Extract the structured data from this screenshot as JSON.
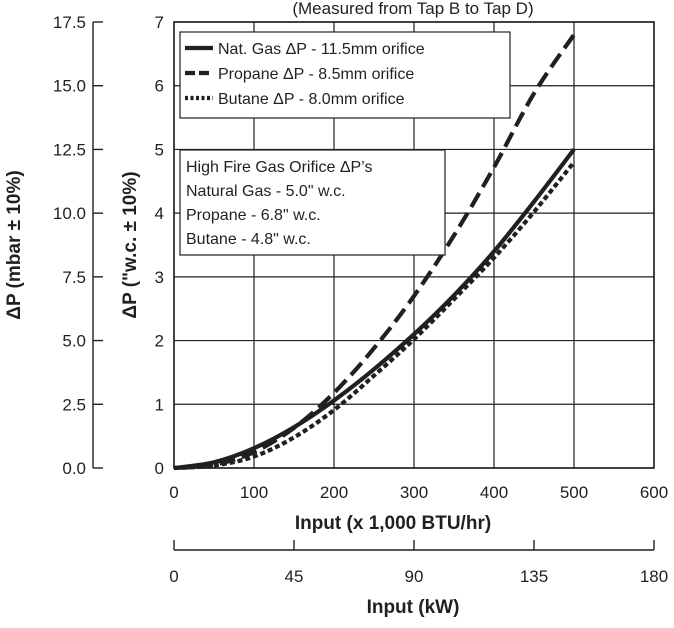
{
  "chart_data": {
    "type": "line",
    "title": "(Measured from Tap B to Tap D)",
    "xlabel": "Input  (x 1,000 BTU/hr)",
    "xlabel_secondary": "Input  (kW)",
    "ylabel": "ΔP (\"w.c. ± 10%)",
    "ylabel_secondary": "ΔP (mbar ± 10%)",
    "xlim": [
      0,
      600
    ],
    "ylim": [
      0,
      7
    ],
    "x_ticks": [
      "0",
      "100",
      "200",
      "300",
      "400",
      "500",
      "600"
    ],
    "y_ticks": [
      "0",
      "1",
      "2",
      "3",
      "4",
      "5",
      "6",
      "7"
    ],
    "x2_ticks": [
      "0",
      "45",
      "90",
      "135",
      "180"
    ],
    "x2_tick_values": [
      0,
      150,
      300,
      450,
      600
    ],
    "y2_ticks": [
      "0.0",
      "2.5",
      "5.0",
      "7.5",
      "10.0",
      "12.5",
      "15.0",
      "17.5"
    ],
    "y2_tick_values": [
      0,
      1,
      2,
      3,
      4,
      5,
      6,
      7
    ],
    "grid": true,
    "legend_position": "top-left",
    "series": [
      {
        "name": "Nat. Gas ΔP - 11.5mm orifice",
        "style": "solid",
        "x": [
          0,
          50,
          100,
          150,
          200,
          250,
          300,
          350,
          400,
          450,
          500
        ],
        "values": [
          0,
          0.09,
          0.31,
          0.64,
          1.06,
          1.55,
          2.1,
          2.71,
          3.4,
          4.18,
          5.0
        ]
      },
      {
        "name": "Propane ΔP - 8.5mm orifice",
        "style": "dashed",
        "x": [
          0,
          50,
          100,
          150,
          200,
          250,
          300,
          350,
          400,
          450,
          500
        ],
        "values": [
          0,
          0.05,
          0.25,
          0.63,
          1.18,
          1.88,
          2.7,
          3.65,
          4.72,
          5.88,
          6.8
        ]
      },
      {
        "name": "Butane ΔP - 8.0mm orifice",
        "style": "dotted",
        "x": [
          0,
          50,
          100,
          150,
          200,
          250,
          300,
          350,
          400,
          450,
          500
        ],
        "values": [
          0,
          0.04,
          0.18,
          0.48,
          0.91,
          1.45,
          2.02,
          2.65,
          3.3,
          4.02,
          4.8
        ]
      }
    ],
    "annotation": {
      "lines": [
        "High Fire Gas Orifice ΔP’s",
        "Natural Gas - 5.0\" w.c.",
        "Propane - 6.8\" w.c.",
        "Butane - 4.8\" w.c."
      ]
    },
    "colors": {
      "ink": "#231f20",
      "grid": "#231f20",
      "background": "#ffffff"
    }
  }
}
